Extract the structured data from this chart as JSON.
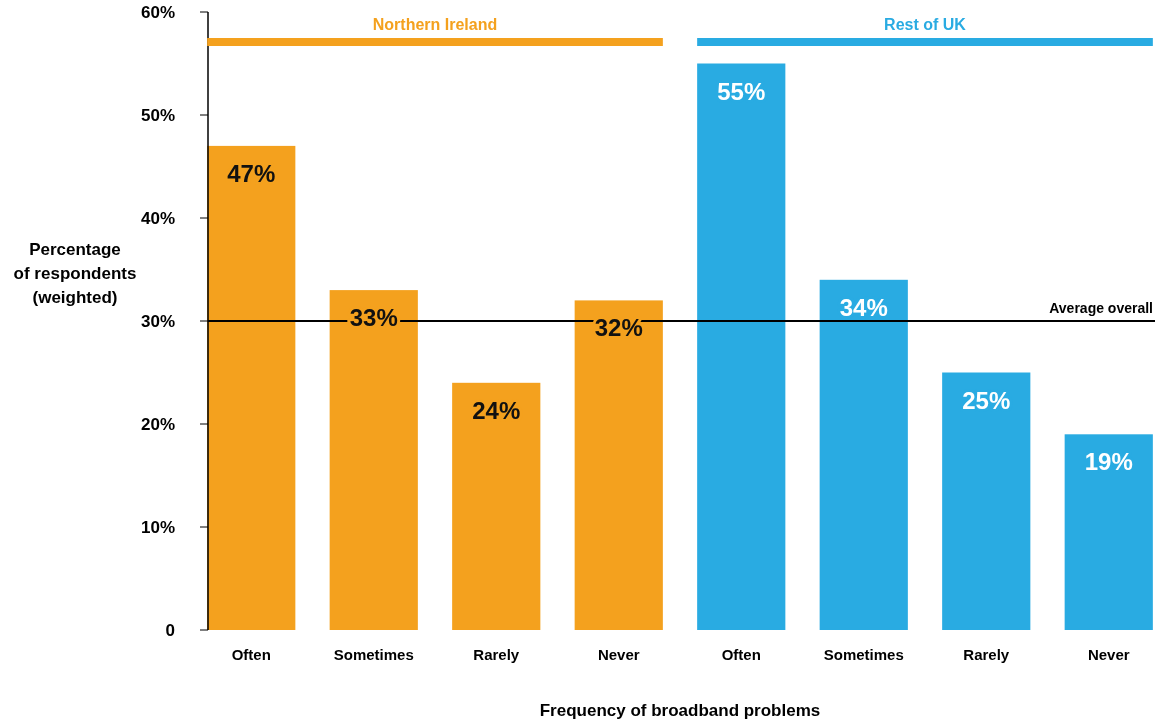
{
  "chart_data": {
    "type": "bar",
    "stacked": true,
    "xlabel": "Frequency of broadband problems",
    "ylabel": "Percentage\nof respondents\n(weighted)",
    "categories": [
      "Often",
      "Sometimes",
      "Rarely",
      "Never",
      "Often",
      "Sometimes",
      "Rarely",
      "Never"
    ],
    "series": [
      {
        "name": "Northern Ireland",
        "color": "#f4a11e",
        "values": [
          47,
          33,
          24,
          32,
          null,
          null,
          null,
          null
        ],
        "value_labels": [
          "47%",
          "33%",
          "24%",
          "32%",
          null,
          null,
          null,
          null
        ]
      },
      {
        "name": "Rest of UK",
        "color": "#29abe2",
        "values": [
          null,
          null,
          null,
          null,
          55,
          34,
          25,
          19
        ],
        "value_labels": [
          null,
          null,
          null,
          null,
          "55%",
          "34%",
          "25%",
          "19%"
        ]
      }
    ],
    "ylim": [
      0,
      60
    ],
    "yticks": [
      {
        "value": 0,
        "label": "0"
      },
      {
        "value": 10,
        "label": "10%"
      },
      {
        "value": 20,
        "label": "20%"
      },
      {
        "value": 30,
        "label": "30%"
      },
      {
        "value": 40,
        "label": "40%"
      },
      {
        "value": 50,
        "label": "50%"
      },
      {
        "value": 60,
        "label": "60%"
      }
    ],
    "ref_lines": [
      {
        "axis": "y",
        "value": 30,
        "label": "Average overall",
        "color": "#000000"
      }
    ],
    "legend": "top",
    "grid": false
  }
}
